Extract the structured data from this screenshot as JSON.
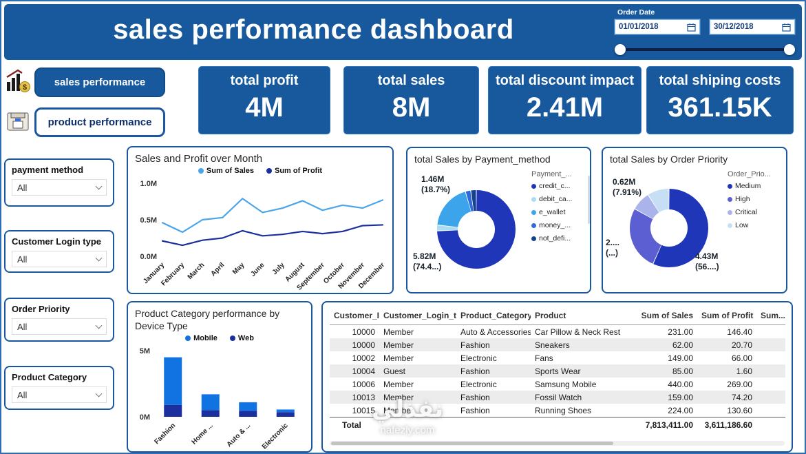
{
  "page": {
    "title": "sales performance dashboard"
  },
  "header": {
    "order_date_label": "Order Date",
    "date_start": "01/01/2018",
    "date_end": "30/12/2018"
  },
  "nav": {
    "sales_label": "sales performance",
    "product_label": "product performance"
  },
  "kpis": [
    {
      "label": "total profit",
      "value": "4M"
    },
    {
      "label": "total sales",
      "value": "8M"
    },
    {
      "label": "total discount impact",
      "value": "2.41M"
    },
    {
      "label": "total shiping costs",
      "value": "361.15K"
    }
  ],
  "filters": [
    {
      "label": "payment method",
      "value": "All"
    },
    {
      "label": "Customer Login type",
      "value": "All"
    },
    {
      "label": "Order Priority",
      "value": "All"
    },
    {
      "label": "Product Category",
      "value": "All"
    }
  ],
  "watermark": {
    "arabic": "نفذلي",
    "site": "nafezly.com"
  },
  "colors": {
    "brand_blue": "#17599c",
    "panel_border": "#1b57a0"
  },
  "chart_data": [
    {
      "type": "line",
      "title": "Sales and Profit over Month",
      "x": [
        "January",
        "February",
        "March",
        "April",
        "May",
        "June",
        "July",
        "August",
        "September",
        "October",
        "November",
        "December"
      ],
      "series": [
        {
          "name": "Sum of Sales",
          "color": "#4aa5e8",
          "values": [
            0.46,
            0.33,
            0.5,
            0.53,
            0.79,
            0.6,
            0.66,
            0.76,
            0.63,
            0.7,
            0.66,
            0.77
          ]
        },
        {
          "name": "Sum of Profit",
          "color": "#1b2f9e",
          "values": [
            0.21,
            0.15,
            0.22,
            0.25,
            0.35,
            0.28,
            0.3,
            0.34,
            0.31,
            0.34,
            0.42,
            0.43
          ]
        }
      ],
      "ylim": [
        0,
        1.0
      ],
      "yticks": [
        {
          "v": 1.0,
          "label": "1.0M"
        },
        {
          "v": 0.5,
          "label": "0.5M"
        },
        {
          "v": 0.0,
          "label": "0.0M"
        }
      ],
      "legend_position": "top",
      "grid": false
    },
    {
      "type": "donut",
      "title": "total Sales by Payment_method",
      "legend_title": "Payment_...",
      "segments": [
        {
          "label": "credit_c...",
          "color": "#2036b8",
          "pct": 74.4
        },
        {
          "label": "debit_ca...",
          "color": "#abdcf0",
          "pct": 2.4
        },
        {
          "label": "e_wallet",
          "color": "#3ba4ea",
          "pct": 18.7
        },
        {
          "label": "money_...",
          "color": "#2f6bd8",
          "pct": 2.2
        },
        {
          "label": "not_defi...",
          "color": "#16418f",
          "pct": 2.3
        }
      ],
      "labels": [
        {
          "value": "1.46M",
          "pct": "(18.7%)"
        },
        {
          "value": "5.82M",
          "pct": "(74.4...)"
        }
      ],
      "legend_position": "right"
    },
    {
      "type": "donut",
      "title": "total Sales by Order Priority",
      "legend_title": "Order_Prio...",
      "segments": [
        {
          "label": "Medium",
          "color": "#2036b8",
          "pct": 56.7
        },
        {
          "label": "High",
          "color": "#5b5fd1",
          "pct": 26.4
        },
        {
          "label": "Critical",
          "color": "#aab4ea",
          "pct": 7.91
        },
        {
          "label": "Low",
          "color": "#c7dff5",
          "pct": 8.99
        }
      ],
      "labels": [
        {
          "value": "0.62M",
          "pct": "(7.91%)"
        },
        {
          "value": "2....",
          "pct": "(...)"
        },
        {
          "value": "4.43M",
          "pct": "(56....)"
        }
      ],
      "legend_position": "right"
    },
    {
      "type": "bar",
      "title": "Product Category performance by Device Type",
      "categories": [
        "Fashion",
        "Home ...",
        "Auto & ...",
        "Electronic"
      ],
      "series": [
        {
          "name": "Mobile",
          "color": "#1173e2",
          "values": [
            3.6,
            1.2,
            0.65,
            0.2
          ]
        },
        {
          "name": "Web",
          "color": "#1b2f9e",
          "values": [
            0.9,
            0.5,
            0.45,
            0.35
          ]
        }
      ],
      "stack_order": [
        1,
        0
      ],
      "ylim": [
        0,
        5
      ],
      "yticks": [
        {
          "v": 5,
          "label": "5M"
        },
        {
          "v": 0,
          "label": "0M"
        }
      ],
      "legend_position": "top",
      "grid": false
    },
    {
      "type": "table",
      "columns": [
        "Customer_Id",
        "Customer_Login_type",
        "Product_Category",
        "Product",
        "Sum of Sales",
        "Sum of Profit",
        "Sum..."
      ],
      "align": [
        "right",
        "left",
        "left",
        "left",
        "right",
        "right",
        "left"
      ],
      "rows": [
        [
          "10000",
          "Member",
          "Auto & Accessories",
          "Car Pillow & Neck Rest",
          "231.00",
          "146.40",
          ""
        ],
        [
          "10000",
          "Member",
          "Fashion",
          "Sneakers",
          "62.00",
          "20.70",
          ""
        ],
        [
          "10002",
          "Member",
          "Electronic",
          "Fans",
          "149.00",
          "66.00",
          ""
        ],
        [
          "10004",
          "Guest",
          "Fashion",
          "Sports Wear",
          "85.00",
          "1.60",
          ""
        ],
        [
          "10006",
          "Member",
          "Electronic",
          "Samsung Mobile",
          "440.00",
          "269.00",
          ""
        ],
        [
          "10013",
          "Member",
          "Fashion",
          "Fossil Watch",
          "159.00",
          "74.20",
          ""
        ],
        [
          "10015",
          "Member",
          "Fashion",
          "Running Shoes",
          "224.00",
          "130.60",
          ""
        ]
      ],
      "total": [
        "Total",
        "",
        "",
        "",
        "7,813,411.00",
        "3,611,186.60",
        ""
      ]
    }
  ]
}
